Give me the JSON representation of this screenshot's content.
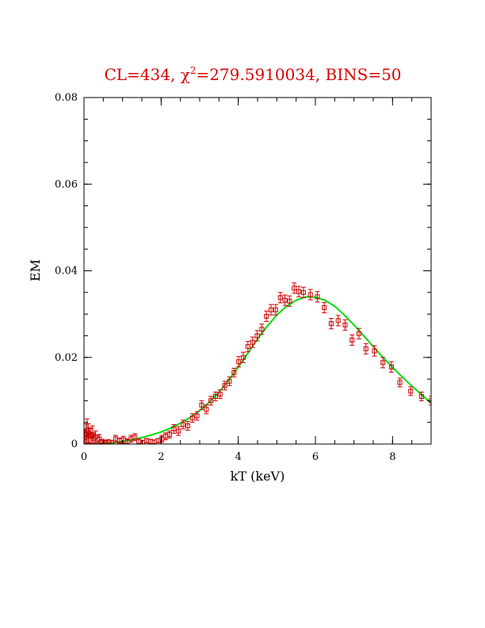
{
  "chart_data": {
    "type": "scatter",
    "title": {
      "prefix": "CL=434, ",
      "chi_symbol": "χ",
      "chi_superscript": "2",
      "suffix": "=279.5910034, BINS=50"
    },
    "xlabel": "kT (keV)",
    "ylabel": "EM",
    "xlim": [
      0,
      9
    ],
    "ylim": [
      0,
      0.08
    ],
    "x_ticks": [
      {
        "value": 0,
        "label": "0"
      },
      {
        "value": 2,
        "label": "2"
      },
      {
        "value": 4,
        "label": "4"
      },
      {
        "value": 6,
        "label": "6"
      },
      {
        "value": 8,
        "label": "8"
      }
    ],
    "y_ticks": [
      {
        "value": 0,
        "label": "0"
      },
      {
        "value": 0.02,
        "label": "0.02"
      },
      {
        "value": 0.04,
        "label": "0.04"
      },
      {
        "value": 0.06,
        "label": "0.06"
      },
      {
        "value": 0.08,
        "label": "0.08"
      }
    ],
    "x_minor_step": 0.5,
    "y_minor_step": 0.005,
    "grid": false,
    "colors": {
      "title": "#dd0000",
      "data": "#cc0000",
      "model": "#00dd00",
      "axes": "#000000"
    },
    "series": [
      {
        "kind": "points_with_errorbars",
        "x": [
          0.02,
          0.05,
          0.08,
          0.11,
          0.14,
          0.18,
          0.22,
          0.26,
          0.3,
          0.35,
          0.4,
          0.47,
          0.55,
          0.63,
          0.72,
          0.82,
          0.92,
          1.02,
          1.12,
          1.22,
          1.32,
          1.42,
          1.52,
          1.62,
          1.72,
          1.82,
          1.92,
          2.02,
          2.12,
          2.22,
          2.33,
          2.45,
          2.57,
          2.69,
          2.81,
          2.93,
          3.05,
          3.17,
          3.29,
          3.41,
          3.53,
          3.65,
          3.77,
          3.89,
          4.01,
          4.13,
          4.25,
          4.37,
          4.49,
          4.61,
          4.73,
          4.85,
          4.97,
          5.09,
          5.21,
          5.33,
          5.45,
          5.57,
          5.69,
          5.87,
          6.05,
          6.23,
          6.41,
          6.59,
          6.77,
          6.95,
          7.13,
          7.31,
          7.53,
          7.75,
          7.97,
          8.19,
          8.47,
          8.75,
          9.0
        ],
        "y": [
          0.0015,
          0.0022,
          0.003,
          0.0025,
          0.002,
          0.0018,
          0.0022,
          0.0012,
          0.0016,
          0.001,
          0.0012,
          0.0006,
          0.0004,
          0.0005,
          0.0004,
          0.0012,
          0.0008,
          0.001,
          0.0006,
          0.0012,
          0.0016,
          0.0006,
          0.0004,
          0.0008,
          0.0006,
          0.0005,
          0.0008,
          0.0012,
          0.0018,
          0.0022,
          0.0035,
          0.003,
          0.0045,
          0.0042,
          0.006,
          0.0065,
          0.009,
          0.008,
          0.01,
          0.011,
          0.0115,
          0.0135,
          0.0145,
          0.0165,
          0.019,
          0.02,
          0.0225,
          0.0235,
          0.025,
          0.0265,
          0.0295,
          0.031,
          0.031,
          0.0338,
          0.0332,
          0.033,
          0.036,
          0.0352,
          0.035,
          0.0345,
          0.034,
          0.0315,
          0.0278,
          0.0285,
          0.0275,
          0.024,
          0.0255,
          0.022,
          0.0215,
          0.0188,
          0.0178,
          0.0142,
          0.0122,
          0.011,
          0.01
        ],
        "err": [
          0.002,
          0.0025,
          0.0028,
          0.0022,
          0.0018,
          0.0018,
          0.002,
          0.0012,
          0.0014,
          0.001,
          0.001,
          0.0005,
          0.0004,
          0.0005,
          0.0004,
          0.0008,
          0.0006,
          0.0008,
          0.0006,
          0.0008,
          0.0008,
          0.0005,
          0.0004,
          0.0005,
          0.0005,
          0.0004,
          0.0005,
          0.0008,
          0.0008,
          0.0008,
          0.001,
          0.001,
          0.001,
          0.001,
          0.001,
          0.001,
          0.001,
          0.001,
          0.001,
          0.001,
          0.001,
          0.001,
          0.001,
          0.001,
          0.0012,
          0.0012,
          0.0012,
          0.0012,
          0.0012,
          0.0012,
          0.0012,
          0.0012,
          0.0012,
          0.0012,
          0.0012,
          0.0012,
          0.0012,
          0.0012,
          0.0012,
          0.0012,
          0.0012,
          0.0012,
          0.0012,
          0.0012,
          0.0012,
          0.0012,
          0.0012,
          0.0012,
          0.0012,
          0.0012,
          0.0012,
          0.001,
          0.001,
          0.001,
          0.001
        ]
      },
      {
        "kind": "curve",
        "x": [
          0.0,
          0.25,
          0.5,
          0.75,
          1.0,
          1.25,
          1.5,
          1.75,
          2.0,
          2.25,
          2.5,
          2.75,
          3.0,
          3.25,
          3.5,
          3.75,
          4.0,
          4.25,
          4.5,
          4.75,
          5.0,
          5.25,
          5.5,
          5.75,
          6.0,
          6.25,
          6.5,
          6.75,
          7.0,
          7.25,
          7.5,
          7.75,
          8.0,
          8.25,
          8.5,
          8.75,
          9.0
        ],
        "y": [
          0.0,
          0.0001,
          0.0002,
          0.0003,
          0.0006,
          0.001,
          0.0015,
          0.0021,
          0.0028,
          0.0037,
          0.0048,
          0.0061,
          0.0077,
          0.0097,
          0.012,
          0.0147,
          0.0178,
          0.021,
          0.0242,
          0.0272,
          0.0298,
          0.0318,
          0.0332,
          0.034,
          0.0339,
          0.0332,
          0.0318,
          0.0298,
          0.0275,
          0.025,
          0.0225,
          0.02,
          0.0177,
          0.0155,
          0.0134,
          0.0114,
          0.0095
        ]
      }
    ]
  }
}
